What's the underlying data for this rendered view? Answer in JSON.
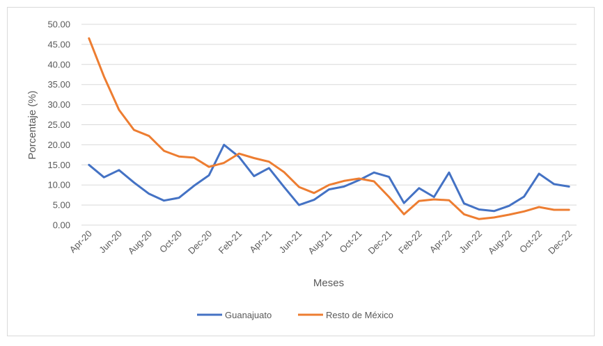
{
  "chart_data": {
    "type": "line",
    "xlabel": "Meses",
    "ylabel": "Porcentaje (%)",
    "ylim": [
      0,
      50
    ],
    "ytick_step": 5,
    "grid": true,
    "legend_position": "bottom",
    "x": [
      "Apr-20",
      "May-20",
      "Jun-20",
      "Jul-20",
      "Aug-20",
      "Sep-20",
      "Oct-20",
      "Nov-20",
      "Dec-20",
      "Jan-21",
      "Feb-21",
      "Mar-21",
      "Apr-21",
      "May-21",
      "Jun-21",
      "Jul-21",
      "Aug-21",
      "Sep-21",
      "Oct-21",
      "Nov-21",
      "Dec-21",
      "Jan-22",
      "Feb-22",
      "Mar-22",
      "Apr-22",
      "May-22",
      "Jun-22",
      "Jul-22",
      "Aug-22",
      "Sep-22",
      "Oct-22",
      "Nov-22",
      "Dec-22"
    ],
    "x_tick_labels": [
      "Apr-20",
      "Jun-20",
      "Aug-20",
      "Oct-20",
      "Dec-20",
      "Feb-21",
      "Apr-21",
      "Jun-21",
      "Aug-21",
      "Oct-21",
      "Dec-21",
      "Feb-22",
      "Apr-22",
      "Jun-22",
      "Aug-22",
      "Oct-22",
      "Dec-22"
    ],
    "series": [
      {
        "name": "Guanajuato",
        "color": "#4472c4",
        "values": [
          15.0,
          11.9,
          13.7,
          10.6,
          7.8,
          6.1,
          6.8,
          9.8,
          12.4,
          20.0,
          17.0,
          12.2,
          14.2,
          9.5,
          5.0,
          6.3,
          8.9,
          9.6,
          11.2,
          13.1,
          12.0,
          5.5,
          9.2,
          7.0,
          13.1,
          5.4,
          3.9,
          3.5,
          4.8,
          7.1,
          12.8,
          10.2,
          9.6
        ]
      },
      {
        "name": "Resto de México",
        "color": "#ed7d31",
        "values": [
          46.5,
          37.0,
          28.7,
          23.7,
          22.2,
          18.5,
          17.1,
          16.8,
          14.5,
          15.5,
          17.8,
          16.7,
          15.8,
          13.2,
          9.5,
          8.0,
          10.0,
          11.0,
          11.6,
          10.9,
          7.0,
          2.7,
          6.0,
          6.4,
          6.2,
          2.7,
          1.5,
          1.9,
          2.6,
          3.4,
          4.5,
          3.8,
          3.8
        ]
      }
    ]
  }
}
